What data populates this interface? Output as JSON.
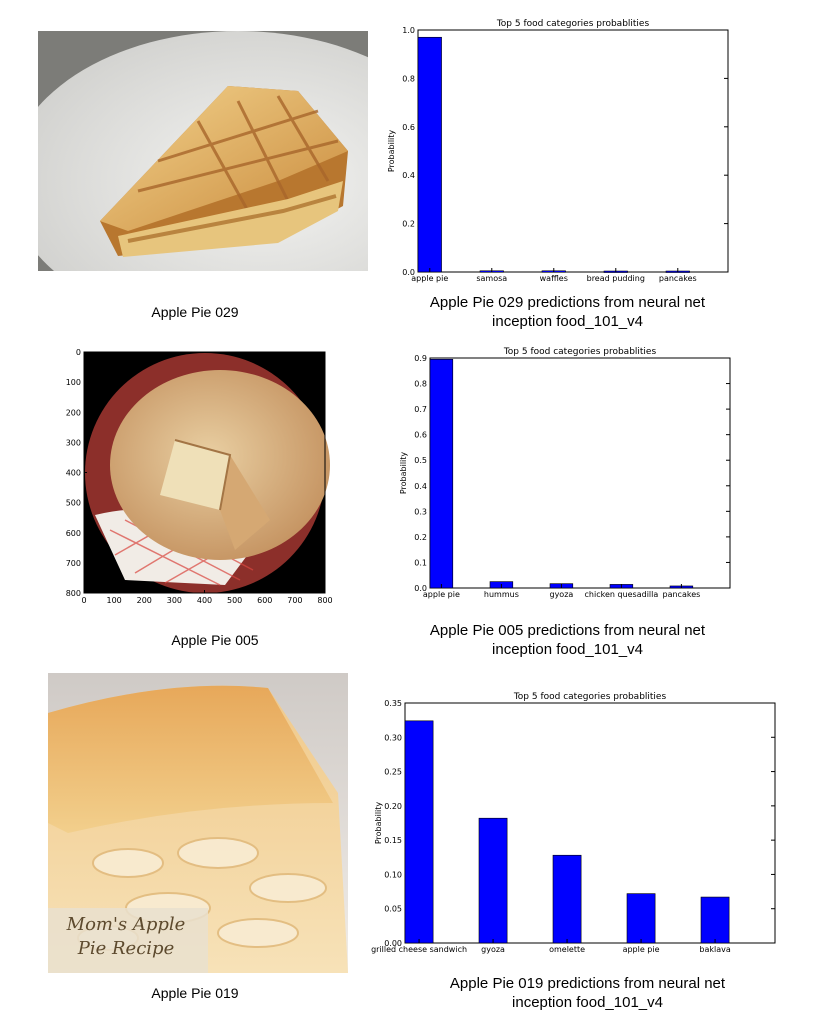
{
  "panels": [
    {
      "photo_caption": "Apple Pie 029",
      "chart_caption_line1": "Apple Pie 029 predictions from neural net",
      "chart_caption_line2": "inception food_101_v4"
    },
    {
      "photo_caption": "Apple Pie 005",
      "chart_caption_line1": "Apple Pie 005 predictions from neural net",
      "chart_caption_line2": "inception food_101_v4",
      "photo_axes": {
        "x_ticks": [
          "0",
          "100",
          "200",
          "300",
          "400",
          "500",
          "600",
          "700",
          "800"
        ],
        "y_ticks": [
          "0",
          "100",
          "200",
          "300",
          "400",
          "500",
          "600",
          "700",
          "800"
        ]
      }
    },
    {
      "photo_caption": "Apple Pie 019",
      "chart_caption_line1": "Apple Pie 019 predictions from neural net",
      "chart_caption_line2": "inception food_101_v4",
      "photo_overlay_text": "Mom's Apple Pie Recipe"
    }
  ],
  "chart_data": [
    {
      "type": "bar",
      "title": "Top 5 food categories probablities",
      "ylabel": "Probability",
      "xlabel": "",
      "categories": [
        "apple pie",
        "samosa",
        "waffles",
        "bread pudding",
        "pancakes"
      ],
      "values": [
        0.97,
        0.005,
        0.005,
        0.004,
        0.004
      ],
      "ylim": [
        0,
        1.0
      ],
      "yticks": [
        "0.0",
        "0.2",
        "0.4",
        "0.6",
        "0.8",
        "1.0"
      ],
      "bar_color": "#0000ff"
    },
    {
      "type": "bar",
      "title": "Top 5 food categories probablities",
      "ylabel": "Probability",
      "xlabel": "",
      "categories": [
        "apple pie",
        "hummus",
        "gyoza",
        "chicken quesadilla",
        "pancakes"
      ],
      "values": [
        0.895,
        0.025,
        0.017,
        0.014,
        0.008
      ],
      "ylim": [
        0,
        0.9
      ],
      "yticks": [
        "0.0",
        "0.1",
        "0.2",
        "0.3",
        "0.4",
        "0.5",
        "0.6",
        "0.7",
        "0.8",
        "0.9"
      ],
      "bar_color": "#0000ff"
    },
    {
      "type": "bar",
      "title": "Top 5 food categories probablities",
      "ylabel": "Probability",
      "xlabel": "",
      "categories": [
        "grilled cheese sandwich",
        "gyoza",
        "omelette",
        "apple pie",
        "baklava"
      ],
      "values": [
        0.324,
        0.182,
        0.128,
        0.072,
        0.067
      ],
      "ylim": [
        0,
        0.35
      ],
      "yticks": [
        "0.00",
        "0.05",
        "0.10",
        "0.15",
        "0.20",
        "0.25",
        "0.30",
        "0.35"
      ],
      "bar_color": "#0000ff"
    }
  ]
}
